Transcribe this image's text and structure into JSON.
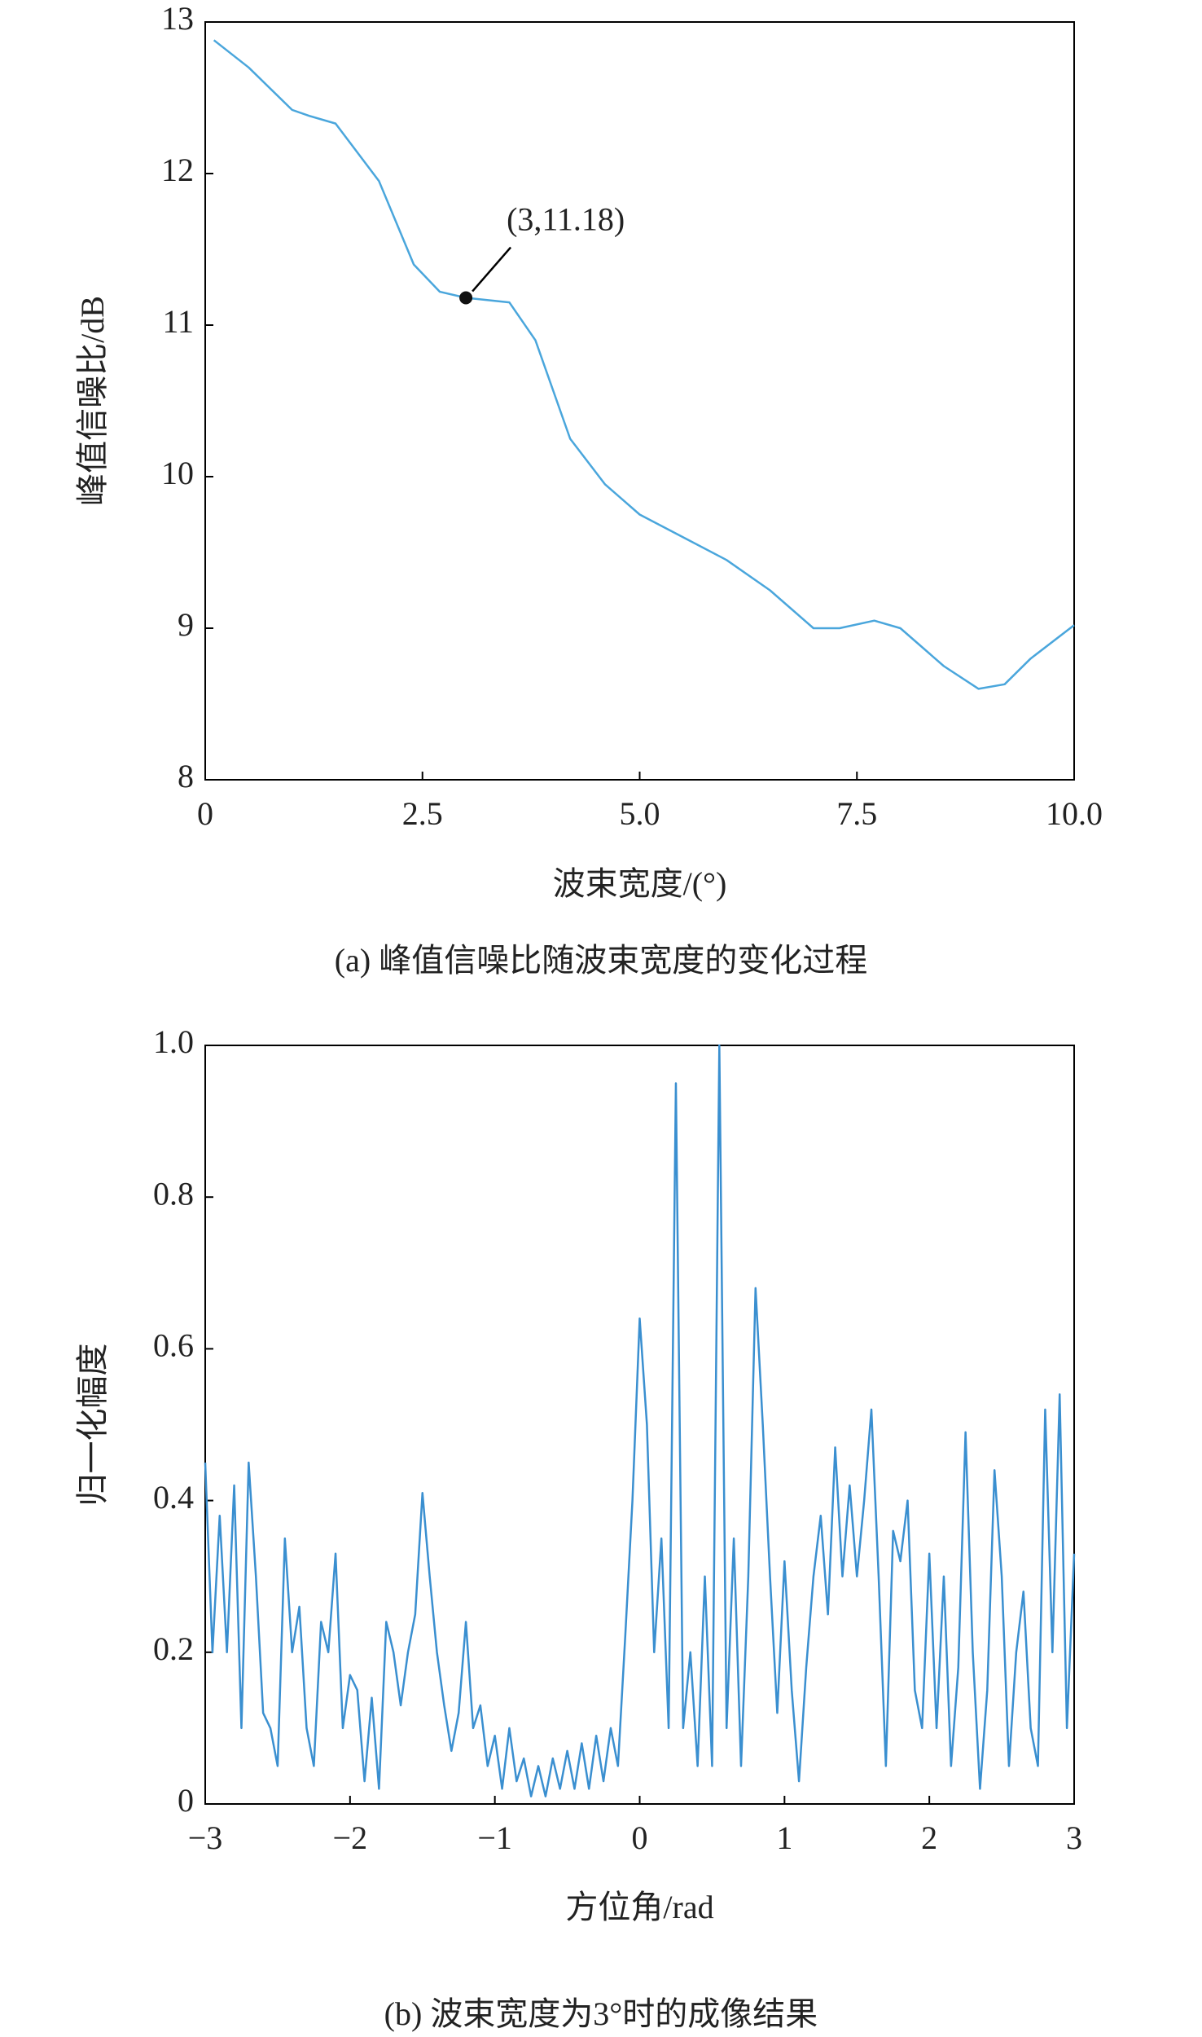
{
  "charts": [
    {
      "chart_data": {
        "type": "line",
        "xlabel": "波束宽度/(°)",
        "ylabel": "峰值信噪比/dB",
        "caption": "(a) 峰值信噪比随波束宽度的变化过程",
        "color": "#4aa6dc",
        "x": [
          0.1,
          0.5,
          1.0,
          1.2,
          1.5,
          2.0,
          2.4,
          2.7,
          3.0,
          3.5,
          3.8,
          4.2,
          4.6,
          5.0,
          5.5,
          6.0,
          6.5,
          7.0,
          7.3,
          7.7,
          8.0,
          8.5,
          8.9,
          9.2,
          9.5,
          10.0
        ],
        "values": [
          12.88,
          12.7,
          12.42,
          12.38,
          12.33,
          11.95,
          11.4,
          11.22,
          11.18,
          11.15,
          10.9,
          10.25,
          9.95,
          9.75,
          9.6,
          9.45,
          9.25,
          9.0,
          9.0,
          9.05,
          9.0,
          8.75,
          8.6,
          8.63,
          8.8,
          9.02
        ],
        "xlim": [
          0,
          10
        ],
        "ylim": [
          8,
          13
        ],
        "xticks": [
          0,
          2.5,
          {
            "value": 5,
            "label": "5.0"
          },
          7.5,
          {
            "value": 10,
            "label": "10.0"
          }
        ],
        "yticks": [
          8,
          9,
          10,
          11,
          12,
          13
        ],
        "annotation": {
          "text": "(3,11.18)",
          "x": 3,
          "y": 11.18
        }
      }
    },
    {
      "chart_data": {
        "type": "line",
        "xlabel": "方位角/rad",
        "ylabel": "归一化幅度",
        "caption": "(b) 波束宽度为3°时的成像结果",
        "color": "#3a8fd0",
        "x": [
          -3.0,
          -2.95,
          -2.9,
          -2.85,
          -2.8,
          -2.75,
          -2.7,
          -2.65,
          -2.6,
          -2.55,
          -2.5,
          -2.45,
          -2.4,
          -2.35,
          -2.3,
          -2.25,
          -2.2,
          -2.15,
          -2.1,
          -2.05,
          -2.0,
          -1.95,
          -1.9,
          -1.85,
          -1.8,
          -1.75,
          -1.7,
          -1.65,
          -1.6,
          -1.55,
          -1.5,
          -1.45,
          -1.4,
          -1.35,
          -1.3,
          -1.25,
          -1.2,
          -1.15,
          -1.1,
          -1.05,
          -1.0,
          -0.95,
          -0.9,
          -0.85,
          -0.8,
          -0.75,
          -0.7,
          -0.65,
          -0.6,
          -0.55,
          -0.5,
          -0.45,
          -0.4,
          -0.35,
          -0.3,
          -0.25,
          -0.2,
          -0.15,
          -0.1,
          -0.05,
          0.0,
          0.05,
          0.1,
          0.15,
          0.2,
          0.25,
          0.3,
          0.35,
          0.4,
          0.45,
          0.5,
          0.55,
          0.6,
          0.65,
          0.7,
          0.75,
          0.8,
          0.85,
          0.9,
          0.95,
          1.0,
          1.05,
          1.1,
          1.15,
          1.2,
          1.25,
          1.3,
          1.35,
          1.4,
          1.45,
          1.5,
          1.55,
          1.6,
          1.65,
          1.7,
          1.75,
          1.8,
          1.85,
          1.9,
          1.95,
          2.0,
          2.05,
          2.1,
          2.15,
          2.2,
          2.25,
          2.3,
          2.35,
          2.4,
          2.45,
          2.5,
          2.55,
          2.6,
          2.65,
          2.7,
          2.75,
          2.8,
          2.85,
          2.9,
          2.95,
          3.0
        ],
        "values": [
          0.45,
          0.2,
          0.38,
          0.2,
          0.42,
          0.1,
          0.45,
          0.3,
          0.12,
          0.1,
          0.05,
          0.35,
          0.2,
          0.26,
          0.1,
          0.05,
          0.24,
          0.2,
          0.33,
          0.1,
          0.17,
          0.15,
          0.03,
          0.14,
          0.02,
          0.24,
          0.2,
          0.13,
          0.2,
          0.25,
          0.41,
          0.3,
          0.2,
          0.13,
          0.07,
          0.12,
          0.24,
          0.1,
          0.13,
          0.05,
          0.09,
          0.02,
          0.1,
          0.03,
          0.06,
          0.01,
          0.05,
          0.01,
          0.06,
          0.02,
          0.07,
          0.02,
          0.08,
          0.02,
          0.09,
          0.03,
          0.1,
          0.05,
          0.22,
          0.4,
          0.64,
          0.5,
          0.2,
          0.35,
          0.1,
          0.95,
          0.1,
          0.2,
          0.05,
          0.3,
          0.05,
          1.0,
          0.1,
          0.35,
          0.05,
          0.3,
          0.68,
          0.5,
          0.3,
          0.12,
          0.32,
          0.15,
          0.03,
          0.18,
          0.3,
          0.38,
          0.25,
          0.47,
          0.3,
          0.42,
          0.3,
          0.4,
          0.52,
          0.3,
          0.05,
          0.36,
          0.32,
          0.4,
          0.15,
          0.1,
          0.33,
          0.1,
          0.3,
          0.05,
          0.18,
          0.49,
          0.2,
          0.02,
          0.15,
          0.44,
          0.3,
          0.05,
          0.2,
          0.28,
          0.1,
          0.05,
          0.52,
          0.2,
          0.54,
          0.1,
          0.33
        ],
        "xlim": [
          -3,
          3
        ],
        "ylim": [
          0,
          1
        ],
        "xticks": [
          {
            "value": -3,
            "label": "−3"
          },
          {
            "value": -2,
            "label": "−2"
          },
          {
            "value": -1,
            "label": "−1"
          },
          0,
          1,
          2,
          3
        ],
        "yticks": [
          0,
          0.2,
          0.4,
          0.6,
          0.8,
          {
            "value": 1,
            "label": "1.0"
          }
        ]
      }
    }
  ]
}
